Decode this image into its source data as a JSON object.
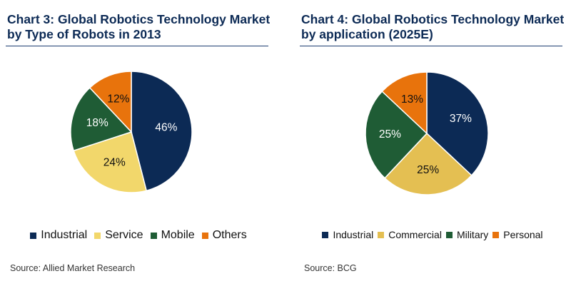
{
  "charts": [
    {
      "title": "Chart 3: Global Robotics Technology Market by Type of Robots in 2013",
      "source": "Source: Allied Market Research"
    },
    {
      "title": "Chart 4: Global Robotics Technology Market by application (2025E)",
      "source": "Source: BCG"
    }
  ],
  "chart_data": [
    {
      "type": "pie",
      "title": "Chart 3: Global Robotics Technology Market by Type of Robots in 2013",
      "categories": [
        "Industrial",
        "Service",
        "Mobile",
        "Others"
      ],
      "values": [
        46,
        24,
        18,
        12
      ],
      "labels": [
        "46%",
        "24%",
        "18%",
        "12%"
      ],
      "colors": [
        "#0c2a55",
        "#f2d76b",
        "#1f5c35",
        "#e8730c"
      ],
      "label_colors": [
        "#ffffff",
        "#111111",
        "#ffffff",
        "#111111"
      ],
      "legend": "bottom"
    },
    {
      "type": "pie",
      "title": "Chart 4: Global Robotics Technology Market by application (2025E)",
      "categories": [
        "Industrial",
        "Commercial",
        "Military",
        "Personal"
      ],
      "values": [
        37,
        25,
        25,
        13
      ],
      "labels": [
        "37%",
        "25%",
        "25%",
        "13%"
      ],
      "colors": [
        "#0c2a55",
        "#e4bf52",
        "#1f5c35",
        "#e8730c"
      ],
      "label_colors": [
        "#ffffff",
        "#111111",
        "#ffffff",
        "#111111"
      ],
      "legend": "bottom"
    }
  ]
}
